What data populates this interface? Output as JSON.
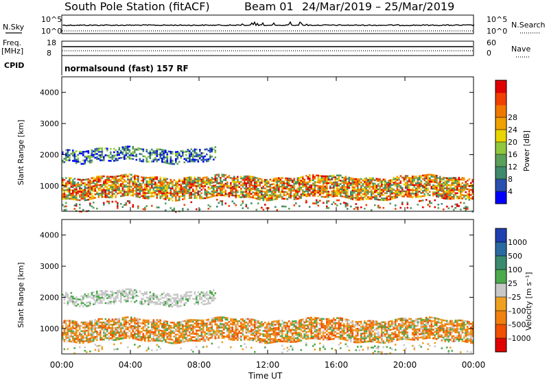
{
  "header": {
    "station": "South Pole Station (fitACF)",
    "beam": "Beam 01",
    "dates": "24/Mar/2019 – 25/Mar/2019"
  },
  "top_panels": {
    "nsky_label": "N.Sky",
    "nsky_ticks": [
      "10^5",
      "10^0"
    ],
    "nsearch_label": "N.Search",
    "nsearch_ticks": [
      "10^5",
      "10^0"
    ],
    "freq_label": "Freq.",
    "freq_unit": "[MHz]",
    "freq_ticks": [
      "18",
      "8"
    ],
    "nave_label": "Nave",
    "nave_ticks": [
      "60",
      "0"
    ],
    "cpid_label": "CPID",
    "cpid_text": "normalsound (fast) 157 RF"
  },
  "chart_data": [
    {
      "type": "heatmap",
      "name": "power",
      "ylabel": "Slant Range [km]",
      "ylim": [
        180,
        4500
      ],
      "yticks": [
        "1000",
        "2000",
        "3000",
        "4000"
      ],
      "xlim_hours": [
        0,
        24
      ],
      "colorbar_label": "Power [dB]",
      "colorbar_ticks": [
        "4",
        "8",
        "12",
        "16",
        "20",
        "24",
        "28"
      ],
      "colorbar_colors": [
        "#0000ff",
        "#2a4fb0",
        "#3f8a6e",
        "#5aa05a",
        "#8fc83c",
        "#e8d400",
        "#f0a000",
        "#f07800",
        "#f04000",
        "#e00000"
      ],
      "features": [
        {
          "name": "main-band",
          "x_hours": [
            0,
            24
          ],
          "range_km": [
            600,
            1300
          ],
          "level_db": "16-28"
        },
        {
          "name": "upper-band",
          "x_hours": [
            0,
            9
          ],
          "range_km": [
            1800,
            2200
          ],
          "level_db": "4-16"
        }
      ]
    },
    {
      "type": "heatmap",
      "name": "velocity",
      "ylabel": "Slant Range [km]",
      "ylim": [
        180,
        4500
      ],
      "yticks": [
        "1000",
        "2000",
        "3000",
        "4000"
      ],
      "xlim_hours": [
        0,
        24
      ],
      "colorbar_label": "Velocity [m s⁻¹]",
      "colorbar_ticks": [
        "1000",
        "500",
        "100",
        "25",
        "–25",
        "–100",
        "–500",
        "–1000"
      ],
      "colorbar_colors": [
        "#1f3fb0",
        "#2a6aa0",
        "#3a8a70",
        "#4caa4c",
        "#c8c8c8",
        "#f0a020",
        "#f08010",
        "#f05000",
        "#e00000"
      ],
      "features": [
        {
          "name": "main-band",
          "x_hours": [
            0,
            24
          ],
          "range_km": [
            600,
            1300
          ],
          "velocity": "-25 to -500"
        },
        {
          "name": "ground-scatter",
          "x_hours": [
            0,
            9
          ],
          "range_km": [
            1800,
            2200
          ],
          "velocity": "-25 to 25"
        }
      ]
    }
  ],
  "x_axis": {
    "ticks": [
      "00:00",
      "04:00",
      "08:00",
      "12:00",
      "16:00",
      "20:00",
      "00:00"
    ],
    "label": "Time UT"
  }
}
